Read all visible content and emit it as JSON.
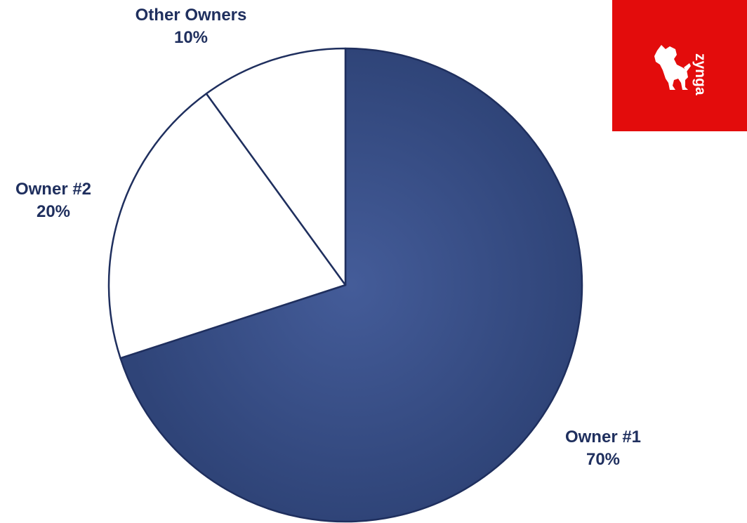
{
  "chart_data": {
    "type": "pie",
    "slices": [
      {
        "label": "Owner #1",
        "percent_label": "70%",
        "value": 70,
        "color": "#3d5590"
      },
      {
        "label": "Owner #2",
        "percent_label": "20%",
        "value": 20,
        "color": "#ffffff"
      },
      {
        "label": "Other Owners",
        "percent_label": "10%",
        "value": 10,
        "color": "#ffffff"
      }
    ],
    "start": "12 o'clock",
    "direction": "clockwise",
    "outline_color": "#1f2f5e",
    "label_color": "#1f2f5e"
  },
  "logo": {
    "wordmark": "zynga",
    "background": "#e30c0c",
    "foreground": "#ffffff",
    "icon": "zynga-dog-icon"
  }
}
